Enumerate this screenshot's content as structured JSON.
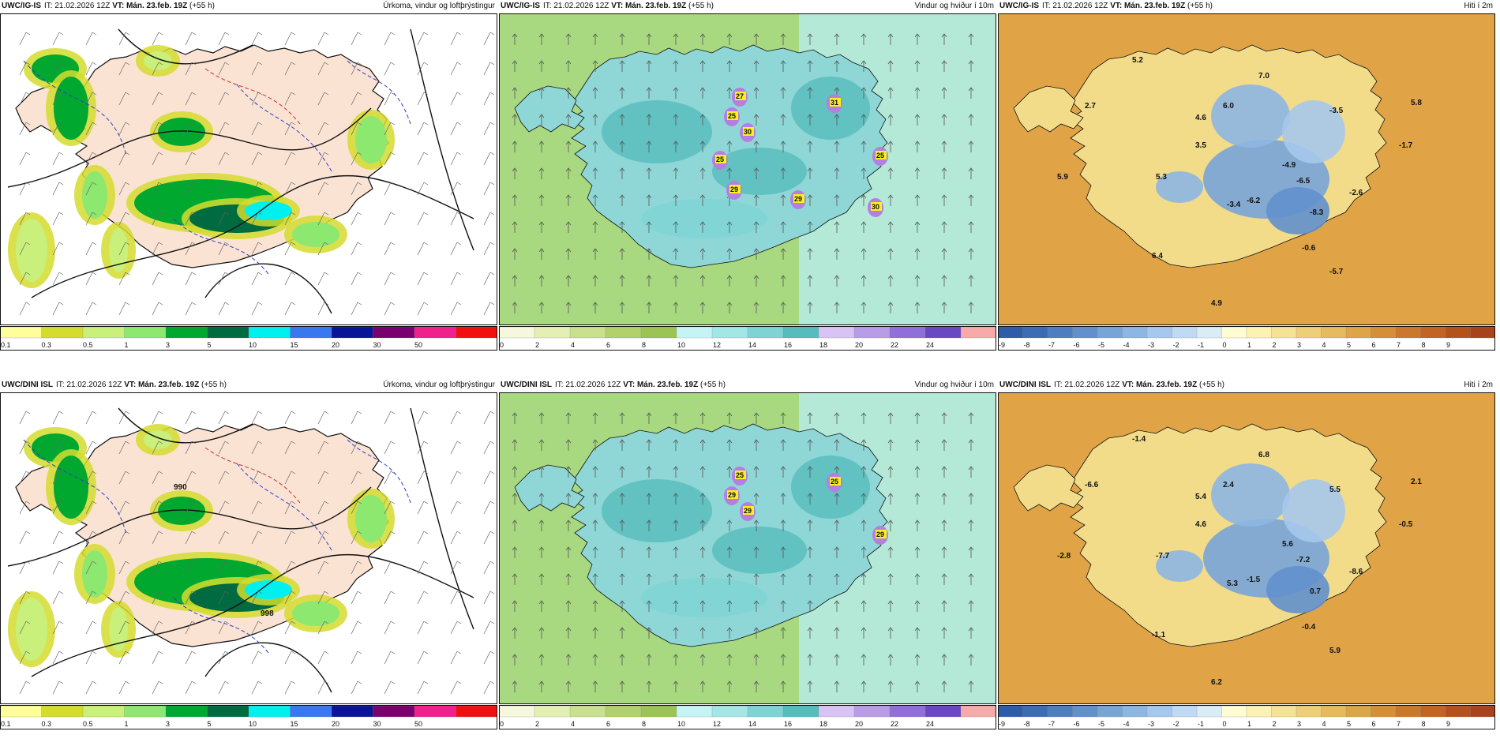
{
  "panels": [
    {
      "id": "p1",
      "model": "UWC/IG-IS",
      "it_label": "IT:",
      "it": "21.02.2026 12Z",
      "vt_label": "VT:",
      "vt": "Mán. 23.feb. 19Z",
      "lead": "(+55 h)",
      "title": "Úrkoma, vindur og loftþrýstingur",
      "legend": "precip",
      "values": []
    },
    {
      "id": "p2",
      "model": "UWC/IG-IS",
      "it_label": "IT:",
      "it": "21.02.2026 12Z",
      "vt_label": "VT:",
      "vt": "Mán. 23.feb. 19Z",
      "lead": "(+55 h)",
      "title": "Vindur og hviður í 10m",
      "legend": "wind",
      "values": [
        "27",
        "25",
        "30",
        "31",
        "25",
        "29",
        "29",
        "30",
        "25"
      ]
    },
    {
      "id": "p3",
      "model": "UWC/IG-IS",
      "it_label": "IT:",
      "it": "21.02.2026 12Z",
      "vt_label": "VT:",
      "vt": "Mán. 23.feb. 19Z",
      "lead": "(+55 h)",
      "title": "Hiti í 2m",
      "legend": "temp",
      "values": [
        "5.2",
        "7.0",
        "2.7",
        "4.6",
        "6.0",
        "-3.5",
        "5.8",
        "3.5",
        "-1.7",
        "5.9",
        "5.3",
        "-4.9",
        "-6.5",
        "-3.4",
        "-6.2",
        "-2.6",
        "-8.3",
        "-0.6",
        "6.4",
        "-5.7",
        "4.9"
      ]
    },
    {
      "id": "p4",
      "model": "UWC/DINI ISL",
      "it_label": "IT:",
      "it": "21.02.2026 12Z",
      "vt_label": "VT:",
      "vt": "Mán. 23.feb. 19Z",
      "lead": "(+55 h)",
      "title": "Úrkoma, vindur og loftþrýstingur",
      "legend": "precip",
      "values": [
        "990",
        "998"
      ]
    },
    {
      "id": "p5",
      "model": "UWC/DINI ISL",
      "it_label": "IT:",
      "it": "21.02.2026 12Z",
      "vt_label": "VT:",
      "vt": "Mán. 23.feb. 19Z",
      "lead": "(+55 h)",
      "title": "Vindur og hviður í 10m",
      "legend": "wind",
      "values": [
        "25",
        "29",
        "29",
        "25",
        "29"
      ]
    },
    {
      "id": "p6",
      "model": "UWC/DINI ISL",
      "it_label": "IT:",
      "it": "21.02.2026 12Z",
      "vt_label": "VT:",
      "vt": "Mán. 23.feb. 19Z",
      "lead": "(+55 h)",
      "title": "Hiti í 2m",
      "legend": "temp",
      "values": [
        "-1.4",
        "6.8",
        "-6.6",
        "5.4",
        "2.4",
        "5.5",
        "2.1",
        "4.6",
        "-0.5",
        "-2.8",
        "-7.7",
        "5.6",
        "-7.2",
        "5.3",
        "-1.5",
        "-8.6",
        "0.7",
        "-0.4",
        "-1.1",
        "5.9",
        "6.2"
      ]
    }
  ],
  "legends": {
    "precip": {
      "labels": [
        "0.1",
        "0.3",
        "0.5",
        "1",
        "3",
        "5",
        "10",
        "15",
        "20",
        "30",
        "50"
      ],
      "colors": [
        "#fefe9a",
        "#d4dc2e",
        "#c8f07a",
        "#8de870",
        "#00a830",
        "#006a40",
        "#00f0f0",
        "#3a78f0",
        "#0a1496",
        "#7a0070",
        "#f0208c",
        "#f01010"
      ]
    },
    "wind": {
      "labels": [
        "0",
        "2",
        "4",
        "6",
        "8",
        "10",
        "12",
        "14",
        "16",
        "18",
        "20",
        "22",
        "24"
      ],
      "colors": [
        "#f5f8dc",
        "#e4efb4",
        "#c9e08c",
        "#b1d26a",
        "#9cc454",
        "#c6f4f4",
        "#a2e6e6",
        "#7ed4d4",
        "#56bcbc",
        "#d8c4f4",
        "#b89ce8",
        "#9070d8",
        "#6a48c4",
        "#f8aaaa"
      ]
    },
    "temp": {
      "labels": [
        "-9",
        "-8",
        "-7",
        "-6",
        "-5",
        "-4",
        "-3",
        "-2",
        "-1",
        "0",
        "1",
        "2",
        "3",
        "4",
        "5",
        "6",
        "7",
        "8",
        "9"
      ],
      "colors": [
        "#2d5da8",
        "#3c6cb4",
        "#4e7ec0",
        "#6290cc",
        "#78a4d8",
        "#8eb6e2",
        "#a6c8ec",
        "#c0daf4",
        "#daecf6",
        "#fefcd2",
        "#fcf2b2",
        "#f6e294",
        "#eecf78",
        "#e6ba5e",
        "#dea448",
        "#d68e38",
        "#cc782c",
        "#c26424",
        "#b4521c",
        "#a8441c"
      ]
    }
  },
  "colors": {
    "land_pale": "#fbe3d4",
    "sea_white": "#ffffff",
    "contour": "#111111",
    "dash_blue": "#2a3ec8",
    "dash_red": "#c83030",
    "wind_sea": "#a8d880",
    "wind_land": "#8fd6d6",
    "temp_sea": "#d98a2c",
    "temp_land": "#f2dc8a"
  }
}
